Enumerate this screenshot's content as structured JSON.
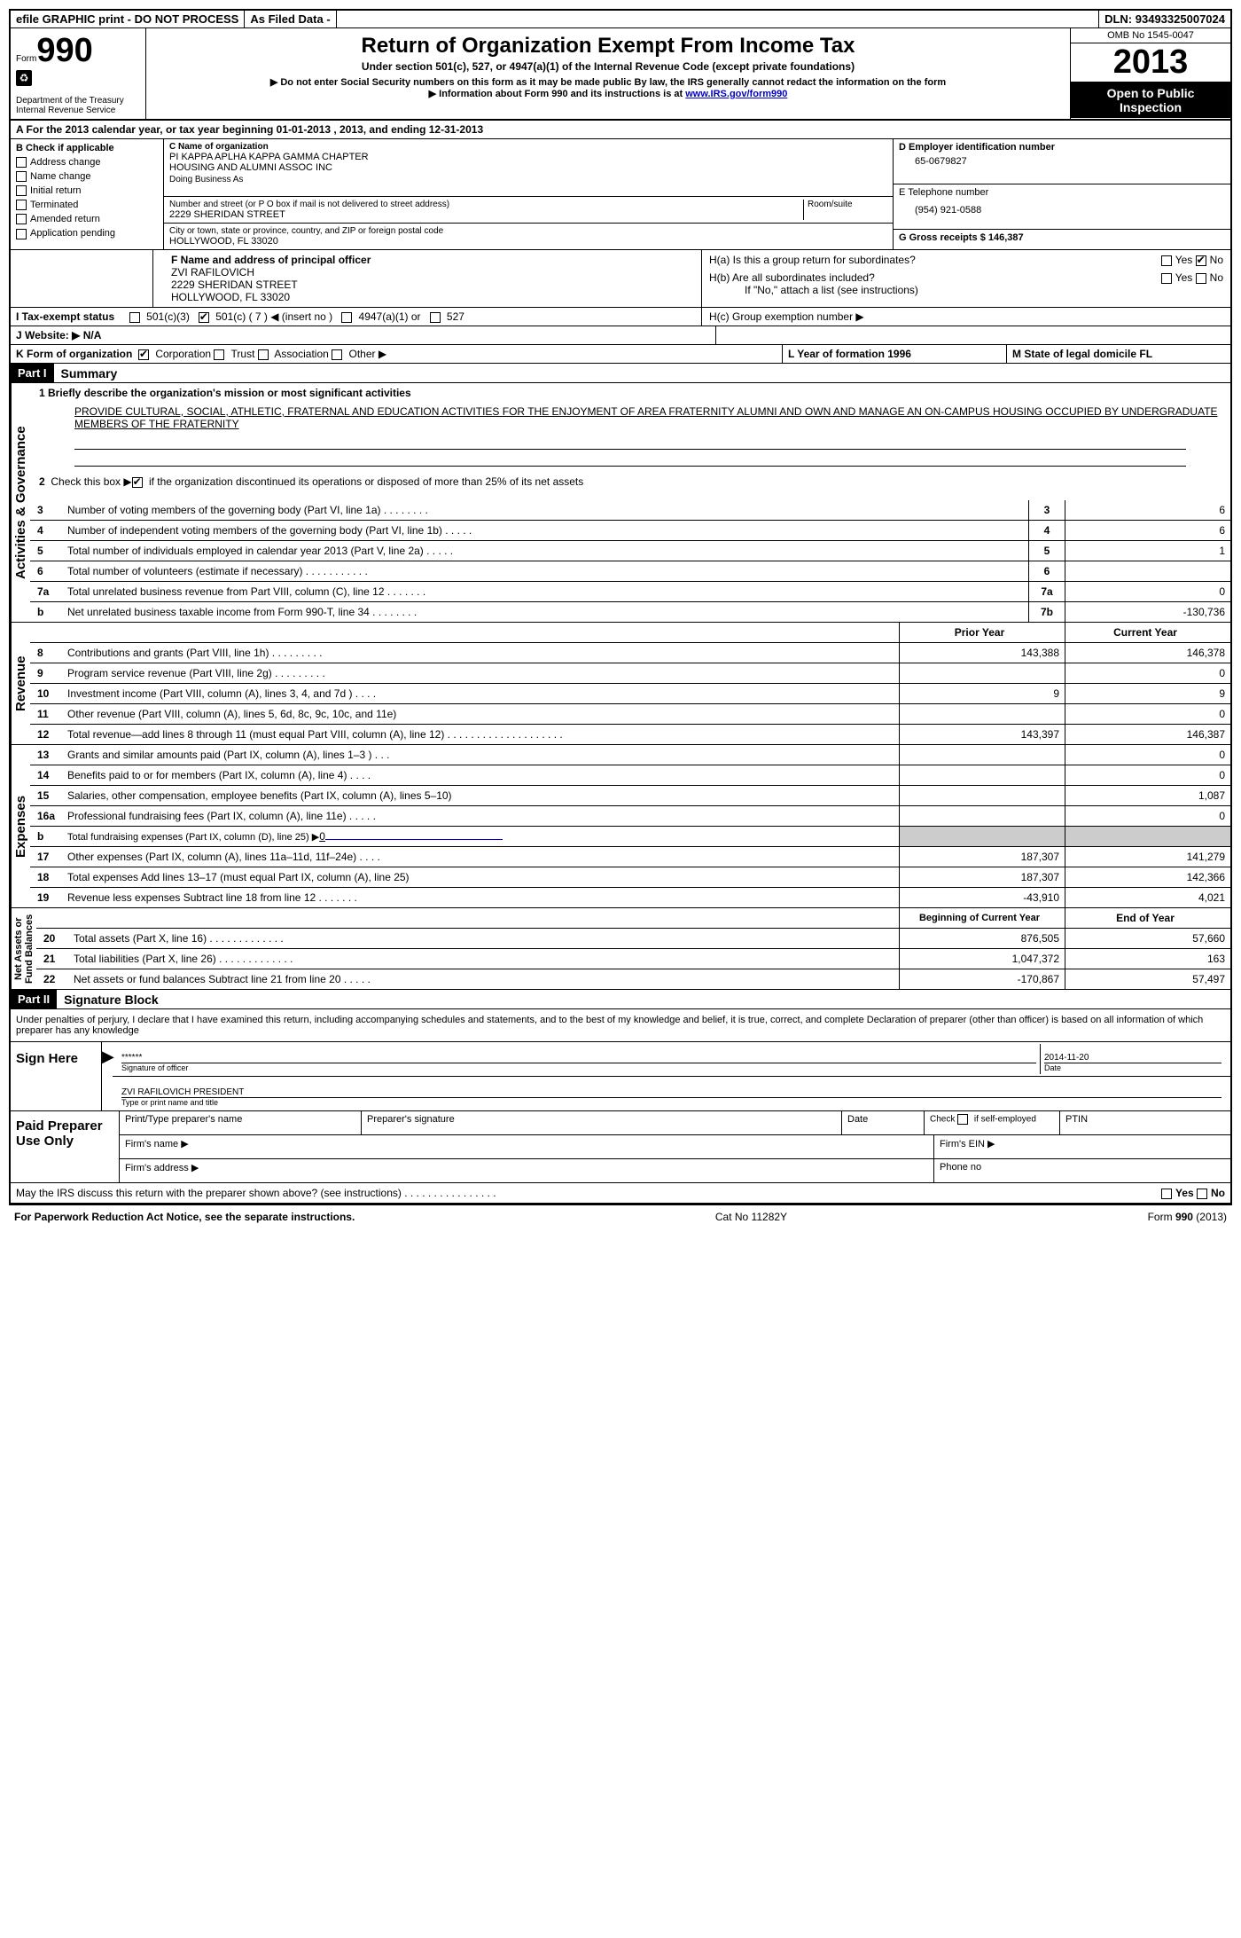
{
  "topbar": {
    "efile": "efile GRAPHIC print - DO NOT PROCESS",
    "asfiled": "As Filed Data -",
    "dln_label": "DLN:",
    "dln": "93493325007024"
  },
  "header": {
    "form_word": "Form",
    "form_no": "990",
    "dept1": "Department of the Treasury",
    "dept2": "Internal Revenue Service",
    "title": "Return of Organization Exempt From Income Tax",
    "sub1": "Under section 501(c), 527, or 4947(a)(1) of the Internal Revenue Code (except private foundations)",
    "sub2": "▶ Do not enter Social Security numbers on this form as it may be made public  By law, the IRS generally cannot redact the information on the form",
    "sub3_pre": "▶ Information about Form 990 and its instructions is at ",
    "sub3_link": "www.IRS.gov/form990",
    "omb": "OMB No  1545-0047",
    "year": "2013",
    "open": "Open to Public Inspection"
  },
  "sectionA": {
    "label": "A  For the 2013 calendar year, or tax year beginning 01-01-2013     , 2013, and ending 12-31-2013"
  },
  "sectionB": {
    "label": "B  Check if applicable",
    "opts": {
      "addr": "Address change",
      "name": "Name change",
      "init": "Initial return",
      "term": "Terminated",
      "amend": "Amended return",
      "app": "Application pending"
    }
  },
  "sectionC": {
    "label": "C Name of organization",
    "name1": "PI KAPPA APLHA KAPPA GAMMA CHAPTER",
    "name2": "HOUSING AND ALUMNI ASSOC INC",
    "dba_label": "Doing Business As",
    "addr_label": "Number and street (or P O  box if mail is not delivered to street address)",
    "room_label": "Room/suite",
    "addr": "2229 SHERIDAN STREET",
    "city_label": "City or town, state or province, country, and ZIP or foreign postal code",
    "city": "HOLLYWOOD, FL  33020"
  },
  "sectionD": {
    "label": "D Employer identification number",
    "ein": "65-0679827"
  },
  "sectionE": {
    "label": "E Telephone number",
    "phone": "(954) 921-0588"
  },
  "sectionG": {
    "label": "G Gross receipts $ 146,387"
  },
  "sectionF": {
    "label": "F   Name and address of principal officer",
    "name": "ZVI RAFILOVICH",
    "addr1": "2229 SHERIDAN STREET",
    "addr2": "HOLLYWOOD, FL  33020"
  },
  "sectionH": {
    "ha": "H(a)  Is this a group return for subordinates?",
    "hb": "H(b)  Are all subordinates included?",
    "hb_note": "If \"No,\" attach a list  (see instructions)",
    "hc": "H(c)   Group exemption number ▶",
    "yes": "Yes",
    "no": "No"
  },
  "sectionI": {
    "label": "I    Tax-exempt status",
    "o1": "501(c)(3)",
    "o2": "501(c) ( 7 ) ◀ (insert no )",
    "o3": "4947(a)(1) or",
    "o4": "527"
  },
  "sectionJ": {
    "label": "J   Website: ▶  N/A"
  },
  "sectionK": {
    "label": "K Form of organization",
    "corp": "Corporation",
    "trust": "Trust",
    "assoc": "Association",
    "other": "Other ▶"
  },
  "sectionL": {
    "label": "L Year of formation  1996"
  },
  "sectionM": {
    "label": "M State of legal domicile  FL"
  },
  "part1": {
    "header": "Part I",
    "title": "Summary",
    "vert_gov": "Activities & Governance",
    "vert_rev": "Revenue",
    "vert_exp": "Expenses",
    "vert_net": "Net Assets or\nFund Balances",
    "line1_label": "1   Briefly describe the organization's mission or most significant activities",
    "mission": "PROVIDE CULTURAL, SOCIAL, ATHLETIC, FRATERNAL AND EDUCATION ACTIVITIES FOR THE ENJOYMENT OF AREA FRATERNITY ALUMNI AND OWN AND MANAGE AN ON-CAMPUS HOUSING OCCUPIED BY UNDERGRADUATE MEMBERS OF THE FRATERNITY",
    "line2": "2   Check this box ▶   if the organization discontinued its operations or disposed of more than 25% of its net assets",
    "lines_gov": [
      {
        "n": "3",
        "t": "Number of voting members of the governing body (Part VI, line 1a)  .   .   .   .   .   .   .   .",
        "b": "3",
        "v": "6"
      },
      {
        "n": "4",
        "t": "Number of independent voting members of the governing body (Part VI, line 1b)   .   .   .   .   .",
        "b": "4",
        "v": "6"
      },
      {
        "n": "5",
        "t": "Total number of individuals employed in calendar year 2013 (Part V, line 2a)   .   .   .   .   .",
        "b": "5",
        "v": "1"
      },
      {
        "n": "6",
        "t": "Total number of volunteers (estimate if necessary)   .   .   .   .   .   .   .   .   .   .   .",
        "b": "6",
        "v": ""
      },
      {
        "n": "7a",
        "t": "Total unrelated business revenue from Part VIII, column (C), line 12   .   .   .   .   .   .   .",
        "b": "7a",
        "v": "0"
      },
      {
        "n": "b",
        "t": "Net unrelated business taxable income from Form 990-T, line 34   .   .   .   .   .   .   .   .",
        "b": "7b",
        "v": "-130,736"
      }
    ],
    "col_prior": "Prior Year",
    "col_current": "Current Year",
    "lines_rev": [
      {
        "n": "8",
        "t": "Contributions and grants (Part VIII, line 1h)   .   .   .   .   .   .   .   .   .",
        "p": "143,388",
        "c": "146,378"
      },
      {
        "n": "9",
        "t": "Program service revenue (Part VIII, line 2g)   .   .   .   .   .   .   .   .   .",
        "p": "",
        "c": "0"
      },
      {
        "n": "10",
        "t": "Investment income (Part VIII, column (A), lines 3, 4, and 7d )   .   .   .   .",
        "p": "9",
        "c": "9"
      },
      {
        "n": "11",
        "t": "Other revenue (Part VIII, column (A), lines 5, 6d, 8c, 9c, 10c, and 11e)",
        "p": "",
        "c": "0"
      },
      {
        "n": "12",
        "t": "Total revenue—add lines 8 through 11 (must equal Part VIII, column (A), line 12)  .   .   .   .   .   .   .   .   .   .   .   .   .   .   .   .   .   .   .   .",
        "p": "143,397",
        "c": "146,387"
      }
    ],
    "lines_exp": [
      {
        "n": "13",
        "t": "Grants and similar amounts paid (Part IX, column (A), lines 1–3 )   .   .   .",
        "p": "",
        "c": "0"
      },
      {
        "n": "14",
        "t": "Benefits paid to or for members (Part IX, column (A), line 4)   .   .   .   .",
        "p": "",
        "c": "0"
      },
      {
        "n": "15",
        "t": "Salaries, other compensation, employee benefits (Part IX, column (A), lines 5–10)",
        "p": "",
        "c": "1,087"
      },
      {
        "n": "16a",
        "t": "Professional fundraising fees (Part IX, column (A), line 11e)   .   .   .   .   .",
        "p": "",
        "c": "0"
      },
      {
        "n": "b",
        "t": "Total fundraising expenses (Part IX, column (D), line 25) ▶",
        "p": "GRAY",
        "c": "GRAY",
        "small": true,
        "ul": "0"
      },
      {
        "n": "17",
        "t": "Other expenses (Part IX, column (A), lines 11a–11d, 11f–24e)   .   .   .   .",
        "p": "187,307",
        "c": "141,279"
      },
      {
        "n": "18",
        "t": "Total expenses  Add lines 13–17 (must equal Part IX, column (A), line 25)",
        "p": "187,307",
        "c": "142,366"
      },
      {
        "n": "19",
        "t": "Revenue less expenses  Subtract line 18 from line 12   .   .   .   .   .   .   .",
        "p": "-43,910",
        "c": "4,021"
      }
    ],
    "col_begin": "Beginning of Current Year",
    "col_end": "End of Year",
    "lines_net": [
      {
        "n": "20",
        "t": "Total assets (Part X, line 16)   .   .   .   .   .   .   .   .   .   .   .   .   .",
        "p": "876,505",
        "c": "57,660"
      },
      {
        "n": "21",
        "t": "Total liabilities (Part X, line 26)   .   .   .   .   .   .   .   .   .   .   .   .   .",
        "p": "1,047,372",
        "c": "163"
      },
      {
        "n": "22",
        "t": "Net assets or fund balances  Subtract line 21 from line 20   .   .   .   .   .",
        "p": "-170,867",
        "c": "57,497"
      }
    ]
  },
  "part2": {
    "header": "Part II",
    "title": "Signature Block",
    "decl": "Under penalties of perjury, I declare that I have examined this return, including accompanying schedules and statements, and to the best of my knowledge and belief, it is true, correct, and complete  Declaration of preparer (other than officer) is based on all information of which preparer has any knowledge",
    "sign_here": "Sign Here",
    "stars": "******",
    "sig_officer": "Signature of officer",
    "date_label": "Date",
    "date": "2014-11-20",
    "officer_name": "ZVI RAFILOVICH PRESIDENT",
    "type_name": "Type or print name and title",
    "paid": "Paid Preparer Use Only",
    "prep_name": "Print/Type preparer's name",
    "prep_sig": "Preparer's signature",
    "prep_date": "Date",
    "check_self": "Check        if self-employed",
    "ptin": "PTIN",
    "firm_name": "Firm's name    ▶",
    "firm_ein": "Firm's EIN ▶",
    "firm_addr": "Firm's address ▶",
    "phone": "Phone no",
    "irs_discuss": "May the IRS discuss this return with the preparer shown above? (see instructions)   .   .   .   .   .   .   .   .   .   .   .   .   .   .   .   ."
  },
  "footer": {
    "pra": "For Paperwork Reduction Act Notice, see the separate instructions.",
    "cat": "Cat No  11282Y",
    "form": "Form 990 (2013)"
  }
}
